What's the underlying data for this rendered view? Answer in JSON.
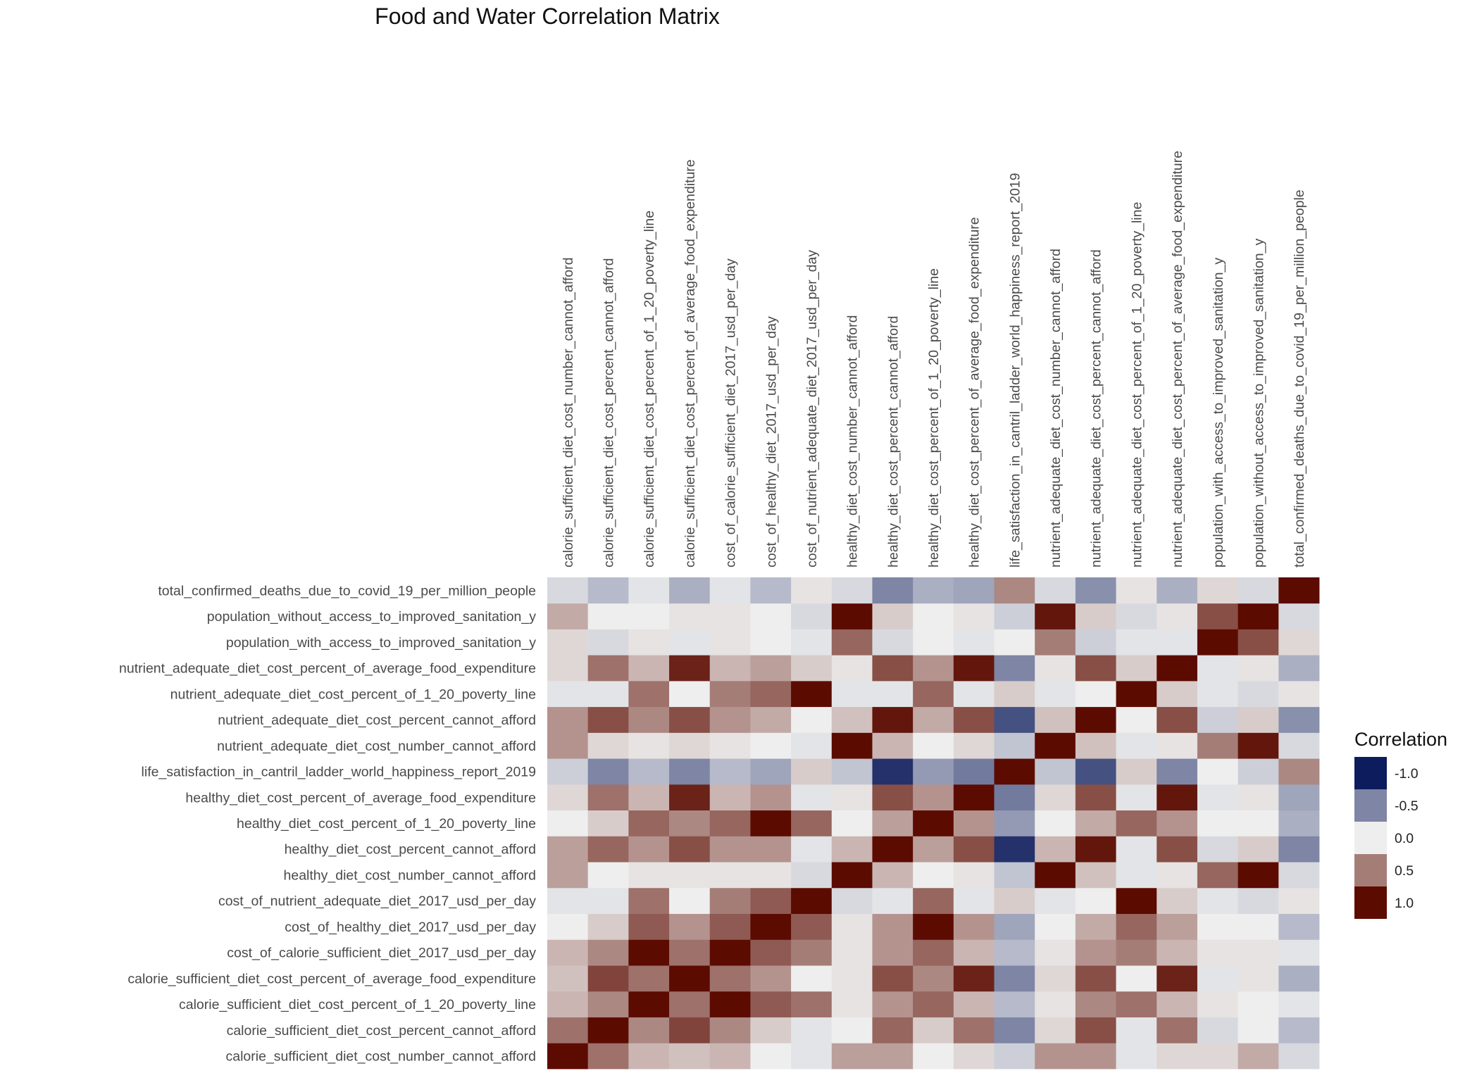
{
  "chart_data": {
    "type": "heatmap",
    "title": "Food and Water Correlation Matrix",
    "xlabel": "",
    "ylabel": "",
    "grid": true,
    "legend_position": "right",
    "variables": [
      "calorie_sufficient_diet_cost_number_cannot_afford",
      "calorie_sufficient_diet_cost_percent_cannot_afford",
      "calorie_sufficient_diet_cost_percent_of_1_20_poverty_line",
      "calorie_sufficient_diet_cost_percent_of_average_food_expenditure",
      "cost_of_calorie_sufficient_diet_2017_usd_per_day",
      "cost_of_healthy_diet_2017_usd_per_day",
      "cost_of_nutrient_adequate_diet_2017_usd_per_day",
      "healthy_diet_cost_number_cannot_afford",
      "healthy_diet_cost_percent_cannot_afford",
      "healthy_diet_cost_percent_of_1_20_poverty_line",
      "healthy_diet_cost_percent_of_average_food_expenditure",
      "life_satisfaction_in_cantril_ladder_world_happiness_report_2019",
      "nutrient_adequate_diet_cost_number_cannot_afford",
      "nutrient_adequate_diet_cost_percent_cannot_afford",
      "nutrient_adequate_diet_cost_percent_of_1_20_poverty_line",
      "nutrient_adequate_diet_cost_percent_of_average_food_expenditure",
      "population_with_access_to_improved_sanitation_y",
      "population_without_access_to_improved_sanitation_y",
      "total_confirmed_deaths_due_to_covid_19_per_million_people"
    ],
    "matrix": [
      [
        1.0,
        0.55,
        0.25,
        0.2,
        0.25,
        0.0,
        -0.05,
        0.35,
        0.35,
        0.0,
        0.1,
        -0.15,
        0.4,
        0.4,
        -0.05,
        0.1,
        0.1,
        0.3,
        -0.1
      ],
      [
        0.55,
        1.0,
        0.45,
        0.75,
        0.45,
        0.15,
        -0.05,
        0.0,
        0.6,
        0.15,
        0.55,
        -0.5,
        0.1,
        0.7,
        -0.05,
        0.55,
        -0.1,
        0.0,
        -0.25
      ],
      [
        0.25,
        0.45,
        1.0,
        0.55,
        1.0,
        0.65,
        0.55,
        0.05,
        0.4,
        0.6,
        0.25,
        -0.25,
        0.05,
        0.45,
        0.55,
        0.25,
        0.05,
        0.0,
        -0.05
      ],
      [
        0.2,
        0.75,
        0.55,
        1.0,
        0.55,
        0.4,
        0.0,
        0.05,
        0.7,
        0.45,
        0.9,
        -0.5,
        0.1,
        0.7,
        0.0,
        0.9,
        -0.05,
        0.05,
        -0.3
      ],
      [
        0.25,
        0.45,
        1.0,
        0.55,
        1.0,
        0.65,
        0.5,
        0.05,
        0.4,
        0.6,
        0.25,
        -0.25,
        0.05,
        0.4,
        0.5,
        0.25,
        0.05,
        0.05,
        -0.05
      ],
      [
        0.0,
        0.15,
        0.65,
        0.4,
        0.65,
        1.0,
        0.65,
        0.05,
        0.4,
        1.0,
        0.4,
        -0.35,
        0.0,
        0.3,
        0.6,
        0.35,
        0.0,
        0.0,
        -0.25
      ],
      [
        -0.05,
        -0.05,
        0.55,
        0.0,
        0.5,
        0.65,
        1.0,
        -0.1,
        -0.05,
        0.6,
        -0.05,
        0.15,
        -0.05,
        0.0,
        1.0,
        0.15,
        -0.05,
        -0.1,
        0.05
      ],
      [
        0.35,
        0.0,
        0.05,
        0.05,
        0.05,
        0.05,
        -0.1,
        1.0,
        0.25,
        0.0,
        0.05,
        -0.2,
        1.0,
        0.2,
        -0.05,
        0.05,
        0.6,
        1.0,
        -0.1
      ],
      [
        0.35,
        0.6,
        0.4,
        0.7,
        0.4,
        0.4,
        -0.05,
        0.25,
        1.0,
        0.35,
        0.7,
        -0.9,
        0.25,
        0.95,
        -0.05,
        0.7,
        -0.1,
        0.15,
        -0.5
      ],
      [
        0.0,
        0.15,
        0.6,
        0.45,
        0.6,
        1.0,
        0.6,
        0.0,
        0.35,
        1.0,
        0.4,
        -0.4,
        0.0,
        0.3,
        0.6,
        0.4,
        0.0,
        0.0,
        -0.3
      ],
      [
        0.1,
        0.55,
        0.25,
        0.9,
        0.25,
        0.4,
        -0.05,
        0.05,
        0.7,
        0.4,
        1.0,
        -0.55,
        0.1,
        0.7,
        -0.05,
        0.95,
        -0.05,
        0.05,
        -0.35
      ],
      [
        -0.15,
        -0.5,
        -0.25,
        -0.5,
        -0.25,
        -0.35,
        0.15,
        -0.2,
        -0.9,
        -0.4,
        -0.55,
        1.0,
        -0.2,
        -0.75,
        0.15,
        -0.5,
        0.0,
        -0.15,
        0.45
      ],
      [
        0.4,
        0.1,
        0.05,
        0.1,
        0.05,
        0.0,
        -0.05,
        1.0,
        0.25,
        0.0,
        0.1,
        -0.2,
        1.0,
        0.2,
        -0.05,
        0.05,
        0.5,
        0.95,
        -0.1
      ],
      [
        0.4,
        0.7,
        0.45,
        0.7,
        0.4,
        0.3,
        0.0,
        0.2,
        0.95,
        0.3,
        0.7,
        -0.75,
        0.2,
        1.0,
        0.0,
        0.7,
        -0.15,
        0.15,
        -0.45
      ],
      [
        -0.05,
        -0.05,
        0.55,
        0.0,
        0.5,
        0.6,
        1.0,
        -0.05,
        -0.05,
        0.6,
        -0.05,
        0.15,
        -0.05,
        0.0,
        1.0,
        0.15,
        -0.05,
        -0.1,
        0.05
      ],
      [
        0.1,
        0.55,
        0.25,
        0.9,
        0.25,
        0.35,
        0.15,
        0.05,
        0.7,
        0.4,
        0.95,
        -0.5,
        0.05,
        0.7,
        0.15,
        1.0,
        -0.05,
        0.05,
        -0.3
      ],
      [
        0.1,
        -0.1,
        0.05,
        -0.05,
        0.05,
        0.0,
        -0.05,
        0.6,
        -0.1,
        0.0,
        -0.05,
        0.0,
        0.5,
        -0.15,
        -0.05,
        -0.05,
        1.0,
        0.7,
        0.1
      ],
      [
        0.3,
        0.0,
        0.0,
        0.05,
        0.05,
        0.0,
        -0.1,
        1.0,
        0.15,
        0.0,
        0.05,
        -0.15,
        0.95,
        0.15,
        -0.1,
        0.05,
        0.7,
        1.0,
        -0.1
      ],
      [
        -0.1,
        -0.25,
        -0.05,
        -0.3,
        -0.05,
        -0.25,
        0.05,
        -0.1,
        -0.5,
        -0.3,
        -0.35,
        0.45,
        -0.1,
        -0.45,
        0.05,
        -0.3,
        0.1,
        -0.1,
        1.0
      ]
    ],
    "color_scale": {
      "min": -1.0,
      "mid": 0.0,
      "max": 1.0,
      "low_color": "#0d1c5c",
      "mid_color": "#eeeeee",
      "high_color": "#5c0b00"
    },
    "legend": {
      "title": "Correlation",
      "entries": [
        {
          "label": "-1.0",
          "value": -1.0
        },
        {
          "label": "-0.5",
          "value": -0.5
        },
        {
          "label": "0.0",
          "value": 0.0
        },
        {
          "label": "0.5",
          "value": 0.5
        },
        {
          "label": "1.0",
          "value": 1.0
        }
      ]
    }
  }
}
